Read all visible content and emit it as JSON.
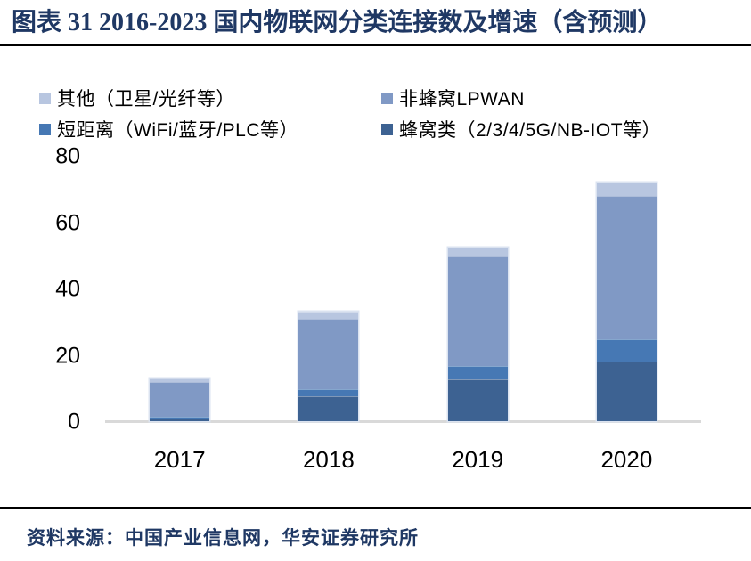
{
  "header": {
    "title": "图表 31 2016-2023 国内物联网分类连接数及增速（含预测）"
  },
  "legend": {
    "items": [
      {
        "id": "other",
        "label": "其他（卫星/光纤等）",
        "color": "#b8c6e0"
      },
      {
        "id": "non-cellular-lpwan",
        "label": "非蜂窝LPWAN",
        "color": "#8099c5"
      },
      {
        "id": "short-range",
        "label": "短距离（WiFi/蓝牙/PLC等）",
        "color": "#4678b4"
      },
      {
        "id": "cellular",
        "label": "蜂窝类（2/3/4/5G/NB-IOT等）",
        "color": "#3d6292"
      }
    ]
  },
  "chart_data": {
    "type": "bar",
    "stacked": true,
    "title": "图表 31 2016-2023 国内物联网分类连接数及增速（含预测）",
    "categories": [
      "2017",
      "2018",
      "2019",
      "2020"
    ],
    "series": [
      {
        "id": "cellular",
        "name": "蜂窝类（2/3/4/5G/NB-IOT等）",
        "color": "#3d6292",
        "values": [
          0.8,
          7.6,
          12.6,
          18.0
        ]
      },
      {
        "id": "short-range",
        "name": "短距离（WiFi/蓝牙/PLC等）",
        "color": "#4678b4",
        "values": [
          0.5,
          2.1,
          4.0,
          6.6
        ]
      },
      {
        "id": "non-cellular-lpwan",
        "name": "非蜂窝LPWAN",
        "color": "#8099c5",
        "values": [
          10.4,
          21.3,
          33.0,
          43.5
        ]
      },
      {
        "id": "other",
        "name": "其他（卫星/光纤等）",
        "color": "#b8c6e0",
        "values": [
          1.3,
          2.0,
          2.8,
          4.0
        ]
      }
    ],
    "xlabel": "",
    "ylabel": "",
    "ylim": [
      0,
      80
    ],
    "yticks": [
      0,
      20,
      40,
      60,
      80
    ],
    "legend_position": "top",
    "grid": false,
    "stack_order_bottom_to_top": [
      "cellular",
      "short-range",
      "non-cellular-lpwan",
      "other"
    ]
  },
  "footer": {
    "source": "资料来源：中国产业信息网，华安证券研究所"
  },
  "colors": {
    "title_text": "#1f3864",
    "footer_text": "#1f3864",
    "axis_text": "#000000",
    "baseline": "#d9d9d9",
    "rule": "#000000"
  }
}
